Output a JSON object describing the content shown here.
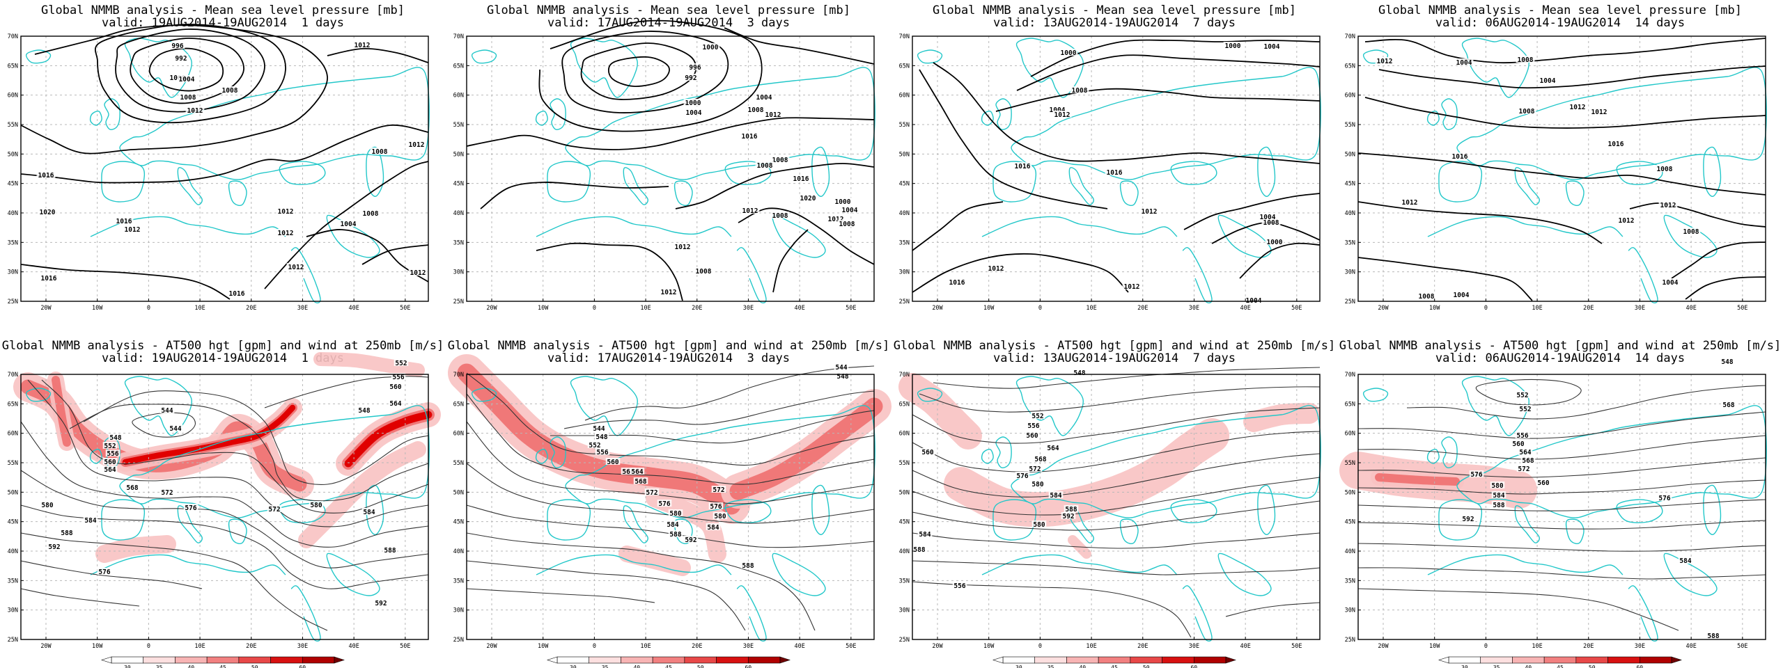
{
  "colors": {
    "coast": "#22c7c9",
    "contour": "#000000",
    "grid": "#b8b8b8",
    "jet_light": "#f8c2c2",
    "jet_mid": "#ee6a6a",
    "jet_strong": "#e00000"
  },
  "axes": {
    "lat_labels": [
      "70N",
      "65N",
      "60N",
      "55N",
      "50N",
      "45N",
      "40N",
      "35N",
      "30N",
      "25N"
    ],
    "lon_labels": [
      "20W",
      "10W",
      "0",
      "10E",
      "20E",
      "30E",
      "40E",
      "50E"
    ]
  },
  "colorbar": {
    "labels": [
      "30",
      "35",
      "40",
      "45",
      "50",
      "60"
    ]
  },
  "top_panels": [
    {
      "title_line1": "Global NMMB analysis - Mean sea level pressure [mb]",
      "title_line2": "valid: 19AUG2014-19AUG2014  1 days",
      "labels": [
        "1012",
        "1008",
        "996",
        "992",
        "1000",
        "1004",
        "1008",
        "1012",
        "1016",
        "1020",
        "1016",
        "1012",
        "1012",
        "1012",
        "1016",
        "1012",
        "1004",
        "1008",
        "1012",
        "1012",
        "1008",
        "1016"
      ]
    },
    {
      "title_line1": "Global NMMB analysis - Mean sea level pressure [mb]",
      "title_line2": "valid: 17AUG2014-19AUG2014  3 days",
      "labels": [
        "1000",
        "996",
        "992",
        "1000",
        "1004",
        "1008",
        "1004",
        "1008",
        "1012",
        "1016",
        "1016",
        "1020",
        "1012",
        "1008",
        "1004",
        "1000",
        "1008",
        "1012",
        "1012",
        "1008",
        "1012",
        "1008"
      ]
    },
    {
      "title_line1": "Global NMMB analysis - Mean sea level pressure [mb]",
      "title_line2": "valid: 13AUG2014-19AUG2014  7 days",
      "labels": [
        "1000",
        "1004",
        "1000",
        "1004",
        "1008",
        "1012",
        "1016",
        "1016",
        "1012",
        "1008",
        "1004",
        "1000",
        "1012",
        "1016",
        "1012",
        "1004"
      ]
    },
    {
      "title_line1": "Global NMMB analysis - Mean sea level pressure [mb]",
      "title_line2": "valid: 06AUG2014-19AUG2014  14 days",
      "labels": [
        "1012",
        "1004",
        "1008",
        "1004",
        "1008",
        "1012",
        "1012",
        "1016",
        "1016",
        "1012",
        "1008",
        "1004",
        "1008",
        "1012",
        "1008",
        "1012",
        "1004"
      ]
    }
  ],
  "bottom_panels": [
    {
      "title_line1": "Global NMMB analysis - AT500 hgt [gpm] and wind at 250mb [m/s]",
      "title_line2": "valid: 19AUG2014-19AUG2014  1 days",
      "labels": [
        "544",
        "552",
        "556",
        "560",
        "564",
        "548",
        "544",
        "548",
        "552",
        "556",
        "560",
        "564",
        "568",
        "572",
        "576",
        "580",
        "584",
        "588",
        "592",
        "576",
        "572",
        "580",
        "584",
        "588",
        "592"
      ]
    },
    {
      "title_line1": "Global NMMB analysis - AT500 hgt [gpm] and wind at 250mb [m/s]",
      "title_line2": "valid: 17AUG2014-19AUG2014  3 days",
      "labels": [
        "544",
        "548",
        "544",
        "548",
        "552",
        "556",
        "560",
        "564",
        "568",
        "572",
        "576",
        "580",
        "584",
        "588",
        "592",
        "564",
        "572",
        "576",
        "580",
        "584",
        "588"
      ]
    },
    {
      "title_line1": "Global NMMB analysis - AT500 hgt [gpm] and wind at 250mb [m/s]",
      "title_line2": "valid: 13AUG2014-19AUG2014  7 days",
      "labels": [
        "548",
        "552",
        "556",
        "560",
        "564",
        "568",
        "572",
        "576",
        "580",
        "584",
        "588",
        "592",
        "580",
        "584",
        "588",
        "556",
        "560"
      ]
    },
    {
      "title_line1": "Global NMMB analysis - AT500 hgt [gpm] and wind at 250mb [m/s]",
      "title_line2": "valid: 06AUG2014-19AUG2014  14 days",
      "labels": [
        "552",
        "556",
        "560",
        "564",
        "568",
        "572",
        "576",
        "580",
        "584",
        "588",
        "592",
        "548",
        "552",
        "560",
        "568",
        "576",
        "584",
        "588"
      ]
    }
  ]
}
